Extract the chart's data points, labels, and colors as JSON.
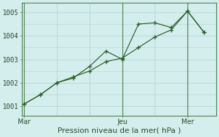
{
  "title": "Pression niveau de la mer( hPa )",
  "background_color": "#d4eeed",
  "plot_bg_color": "#d4eeed",
  "grid_color": "#b8d8d4",
  "line_color": "#2a5e2a",
  "axis_color": "#4a7a4a",
  "text_color": "#2a4a2a",
  "ylim": [
    1000.6,
    1005.4
  ],
  "ytick_values": [
    1001,
    1002,
    1003,
    1004,
    1005
  ],
  "xtick_labels": [
    "Mar",
    "Jeu",
    "Mer"
  ],
  "xtick_positions": [
    0,
    12,
    20
  ],
  "xlim": [
    -0.3,
    23.5
  ],
  "line1_x": [
    0,
    2,
    4,
    6,
    8,
    10,
    12,
    14,
    16,
    18,
    20,
    22
  ],
  "line1_y": [
    1001.1,
    1001.5,
    1002.0,
    1002.25,
    1002.5,
    1002.9,
    1003.05,
    1003.5,
    1003.95,
    1004.25,
    1005.05,
    1004.15
  ],
  "line2_x": [
    0,
    2,
    4,
    6,
    8,
    10,
    12,
    14,
    16,
    18,
    20,
    22
  ],
  "line2_y": [
    1001.1,
    1001.5,
    1002.0,
    1002.2,
    1002.7,
    1003.35,
    1003.0,
    1004.5,
    1004.55,
    1004.35,
    1005.05,
    1004.15
  ],
  "vline_x": [
    0,
    12,
    20
  ],
  "tick_fontsize": 7,
  "label_fontsize": 8
}
